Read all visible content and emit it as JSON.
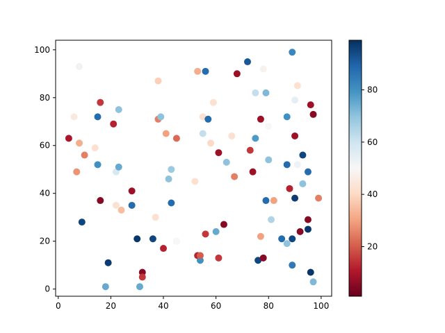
{
  "chart_data": {
    "type": "scatter",
    "title": "",
    "xlabel": "",
    "ylabel": "",
    "xlim": [
      -1,
      104
    ],
    "ylim": [
      -3,
      104
    ],
    "x_ticks": [
      0,
      20,
      40,
      60,
      80,
      100
    ],
    "y_ticks": [
      0,
      20,
      40,
      60,
      80,
      100
    ],
    "grid": false,
    "colormap": "RdBu",
    "colorbar": {
      "min": 1,
      "max": 99,
      "ticks": [
        20,
        40,
        60,
        80
      ]
    },
    "points": [
      {
        "x": 8,
        "y": 93,
        "c": 52
      },
      {
        "x": 4,
        "y": 63,
        "c": 10
      },
      {
        "x": 6,
        "y": 72,
        "c": 45
      },
      {
        "x": 8,
        "y": 61,
        "c": 32
      },
      {
        "x": 7,
        "y": 49,
        "c": 28
      },
      {
        "x": 10,
        "y": 56,
        "c": 25
      },
      {
        "x": 9,
        "y": 28,
        "c": 95
      },
      {
        "x": 14,
        "y": 59,
        "c": 42
      },
      {
        "x": 15,
        "y": 72,
        "c": 88
      },
      {
        "x": 16,
        "y": 78,
        "c": 15
      },
      {
        "x": 15,
        "y": 52,
        "c": 80
      },
      {
        "x": 16,
        "y": 37,
        "c": 5
      },
      {
        "x": 18,
        "y": 1,
        "c": 75
      },
      {
        "x": 19,
        "y": 11,
        "c": 97
      },
      {
        "x": 21,
        "y": 69,
        "c": 12
      },
      {
        "x": 22,
        "y": 49,
        "c": 58
      },
      {
        "x": 22,
        "y": 35,
        "c": 42
      },
      {
        "x": 23,
        "y": 75,
        "c": 70
      },
      {
        "x": 23,
        "y": 51,
        "c": 75
      },
      {
        "x": 24,
        "y": 33,
        "c": 35
      },
      {
        "x": 28,
        "y": 41,
        "c": 8
      },
      {
        "x": 28,
        "y": 35,
        "c": 88
      },
      {
        "x": 30,
        "y": 21,
        "c": 98
      },
      {
        "x": 31,
        "y": 1,
        "c": 75
      },
      {
        "x": 32,
        "y": 7,
        "c": 5
      },
      {
        "x": 32,
        "y": 5,
        "c": 15
      },
      {
        "x": 36,
        "y": 21,
        "c": 95
      },
      {
        "x": 38,
        "y": 87,
        "c": 38
      },
      {
        "x": 37,
        "y": 30,
        "c": 42
      },
      {
        "x": 38,
        "y": 71,
        "c": 25
      },
      {
        "x": 39,
        "y": 72,
        "c": 70
      },
      {
        "x": 40,
        "y": 17,
        "c": 12
      },
      {
        "x": 41,
        "y": 65,
        "c": 30
      },
      {
        "x": 42,
        "y": 46,
        "c": 70
      },
      {
        "x": 43,
        "y": 50,
        "c": 68
      },
      {
        "x": 43,
        "y": 36,
        "c": 88
      },
      {
        "x": 45,
        "y": 63,
        "c": 22
      },
      {
        "x": 45,
        "y": 20,
        "c": 40
      },
      {
        "x": 45,
        "y": 20,
        "c": 50
      },
      {
        "x": 52,
        "y": 45,
        "c": 42
      },
      {
        "x": 53,
        "y": 91,
        "c": 32
      },
      {
        "x": 53,
        "y": 14,
        "c": 12
      },
      {
        "x": 54,
        "y": 12,
        "c": 80
      },
      {
        "x": 54,
        "y": 14,
        "c": 20
      },
      {
        "x": 55,
        "y": 65,
        "c": 62
      },
      {
        "x": 55,
        "y": 72,
        "c": 42
      },
      {
        "x": 56,
        "y": 91,
        "c": 88
      },
      {
        "x": 56,
        "y": 23,
        "c": 15
      },
      {
        "x": 57,
        "y": 71,
        "c": 88
      },
      {
        "x": 58,
        "y": 61,
        "c": 40
      },
      {
        "x": 59,
        "y": 78,
        "c": 42
      },
      {
        "x": 60,
        "y": 24,
        "c": 75
      },
      {
        "x": 61,
        "y": 57,
        "c": 8
      },
      {
        "x": 61,
        "y": 13,
        "c": 15
      },
      {
        "x": 63,
        "y": 27,
        "c": 5
      },
      {
        "x": 64,
        "y": 53,
        "c": 70
      },
      {
        "x": 66,
        "y": 64,
        "c": 42
      },
      {
        "x": 67,
        "y": 47,
        "c": 25
      },
      {
        "x": 68,
        "y": 90,
        "c": 8
      },
      {
        "x": 72,
        "y": 95,
        "c": 92
      },
      {
        "x": 73,
        "y": 58,
        "c": 15
      },
      {
        "x": 74,
        "y": 49,
        "c": 8
      },
      {
        "x": 75,
        "y": 82,
        "c": 62
      },
      {
        "x": 75,
        "y": 63,
        "c": 78
      },
      {
        "x": 76,
        "y": 12,
        "c": 95
      },
      {
        "x": 77,
        "y": 71,
        "c": 8
      },
      {
        "x": 77,
        "y": 22,
        "c": 30
      },
      {
        "x": 78,
        "y": 92,
        "c": 48
      },
      {
        "x": 78,
        "y": 13,
        "c": 5
      },
      {
        "x": 79,
        "y": 82,
        "c": 72
      },
      {
        "x": 79,
        "y": 37,
        "c": 88
      },
      {
        "x": 80,
        "y": 68,
        "c": 50
      },
      {
        "x": 80,
        "y": 54,
        "c": 70
      },
      {
        "x": 81,
        "y": 29,
        "c": 65
      },
      {
        "x": 82,
        "y": 37,
        "c": 30
      },
      {
        "x": 85,
        "y": 21,
        "c": 88
      },
      {
        "x": 87,
        "y": 72,
        "c": 80
      },
      {
        "x": 87,
        "y": 52,
        "c": 88
      },
      {
        "x": 87,
        "y": 19,
        "c": 70
      },
      {
        "x": 88,
        "y": 42,
        "c": 12
      },
      {
        "x": 89,
        "y": 99,
        "c": 82
      },
      {
        "x": 89,
        "y": 21,
        "c": 95
      },
      {
        "x": 89,
        "y": 10,
        "c": 85
      },
      {
        "x": 90,
        "y": 79,
        "c": 55
      },
      {
        "x": 90,
        "y": 64,
        "c": 8
      },
      {
        "x": 90,
        "y": 38,
        "c": 97
      },
      {
        "x": 91,
        "y": 85,
        "c": 42
      },
      {
        "x": 91,
        "y": 52,
        "c": 52
      },
      {
        "x": 92,
        "y": 24,
        "c": 5
      },
      {
        "x": 93,
        "y": 56,
        "c": 95
      },
      {
        "x": 93,
        "y": 44,
        "c": 70
      },
      {
        "x": 95,
        "y": 49,
        "c": 88
      },
      {
        "x": 95,
        "y": 29,
        "c": 5
      },
      {
        "x": 95,
        "y": 25,
        "c": 98
      },
      {
        "x": 96,
        "y": 77,
        "c": 8
      },
      {
        "x": 96,
        "y": 7,
        "c": 98
      },
      {
        "x": 97,
        "y": 73,
        "c": 5
      },
      {
        "x": 97,
        "y": 3,
        "c": 72
      },
      {
        "x": 99,
        "y": 38,
        "c": 25
      }
    ]
  }
}
